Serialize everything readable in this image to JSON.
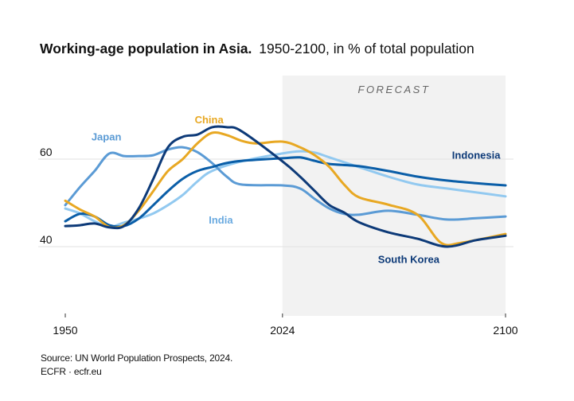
{
  "chart_data": {
    "type": "line",
    "title": "Working-age population in Asia.",
    "subtitle": "1950-2100, in % of total population",
    "xlabel": "",
    "ylabel": "",
    "xlim": [
      1950,
      2100
    ],
    "ylim": [
      24,
      74
    ],
    "x_ticks": [
      1950,
      2024,
      2100
    ],
    "x_tick_labels": [
      "1950",
      "2024",
      "2100"
    ],
    "y_ticks": [
      40,
      60
    ],
    "y_tick_labels": [
      "40",
      "60"
    ],
    "grid": true,
    "forecast": {
      "label": "FORECAST",
      "from": 2024,
      "to": 2100
    },
    "series": [
      {
        "name": "Japan",
        "color": "#5b9bd5",
        "label_position": {
          "x": 1964,
          "y": 64.3
        },
        "x": [
          1950,
          1955,
          1960,
          1965,
          1970,
          1975,
          1980,
          1985,
          1990,
          1995,
          2000,
          2005,
          2010,
          2024,
          2030,
          2035,
          2040,
          2045,
          2050,
          2060,
          2070,
          2080,
          2090,
          2100
        ],
        "values": [
          49.5,
          53.6,
          57.3,
          61.3,
          60.7,
          60.7,
          60.9,
          62.2,
          62.7,
          61.6,
          59.1,
          56.0,
          54.2,
          54.0,
          53.3,
          50.9,
          48.7,
          47.5,
          47.3,
          48.2,
          47.3,
          46.2,
          46.5,
          46.9
        ]
      },
      {
        "name": "China",
        "color": "#e8a823",
        "label_position": {
          "x": 1999,
          "y": 68.2
        },
        "x": [
          1950,
          1955,
          1960,
          1965,
          1970,
          1975,
          1980,
          1985,
          1990,
          1995,
          2000,
          2005,
          2010,
          2015,
          2024,
          2030,
          2035,
          2040,
          2045,
          2050,
          2060,
          2070,
          2078,
          2085,
          2100
        ],
        "values": [
          50.5,
          48.5,
          46.9,
          44.5,
          44.9,
          48.2,
          52.7,
          57.3,
          60.0,
          63.6,
          66.0,
          65.5,
          64.2,
          63.6,
          64.0,
          62.7,
          60.9,
          58.2,
          54.2,
          51.3,
          49.6,
          47.3,
          40.9,
          40.9,
          42.9
        ]
      },
      {
        "name": "South Korea",
        "color": "#0d3a78",
        "label_position": {
          "x": 2067,
          "y": 36.3
        },
        "x": [
          1950,
          1955,
          1960,
          1965,
          1970,
          1975,
          1980,
          1985,
          1990,
          1995,
          2000,
          2005,
          2010,
          2024,
          2030,
          2035,
          2040,
          2045,
          2050,
          2060,
          2070,
          2080,
          2090,
          2100
        ],
        "values": [
          44.7,
          44.9,
          45.3,
          44.4,
          44.7,
          48.7,
          55.5,
          62.7,
          65.1,
          65.6,
          67.3,
          67.3,
          66.4,
          59.5,
          56.0,
          52.7,
          49.5,
          47.8,
          45.6,
          43.3,
          41.8,
          40.0,
          41.5,
          42.5
        ]
      },
      {
        "name": "Indonesia",
        "color": "#0a5ea8",
        "label_position": {
          "x": 2090,
          "y": 60.1
        },
        "x": [
          1950,
          1955,
          1960,
          1965,
          1970,
          1975,
          1980,
          1985,
          1990,
          1995,
          2000,
          2005,
          2010,
          2024,
          2030,
          2035,
          2040,
          2050,
          2060,
          2070,
          2080,
          2090,
          2100
        ],
        "values": [
          45.8,
          47.5,
          46.9,
          44.9,
          44.7,
          46.4,
          49.5,
          52.7,
          55.5,
          57.3,
          58.2,
          59.1,
          59.6,
          60.2,
          60.4,
          59.6,
          58.9,
          58.4,
          57.3,
          56.0,
          55.1,
          54.5,
          54.0
        ]
      },
      {
        "name": "India",
        "color": "#92c9f0",
        "label_position": {
          "x": 2003,
          "y": 45.3
        },
        "x": [
          1950,
          1955,
          1960,
          1965,
          1970,
          1975,
          1980,
          1985,
          1990,
          1995,
          2000,
          2010,
          2024,
          2030,
          2035,
          2040,
          2050,
          2060,
          2070,
          2080,
          2090,
          2100
        ],
        "values": [
          48.7,
          47.6,
          45.8,
          44.5,
          45.5,
          46.4,
          47.6,
          49.5,
          51.8,
          54.9,
          57.3,
          59.5,
          61.3,
          61.8,
          61.5,
          60.4,
          58.2,
          56.0,
          54.2,
          53.3,
          52.4,
          51.5
        ]
      }
    ],
    "label_colors": {
      "Japan": "#5b9bd5",
      "China": "#e8a823",
      "South Korea": "#0d3a78",
      "Indonesia": "#0d3a78",
      "India": "#6aaae0"
    }
  },
  "source": "Source: UN World Population Prospects, 2024.",
  "credit": "ECFR · ecfr.eu"
}
